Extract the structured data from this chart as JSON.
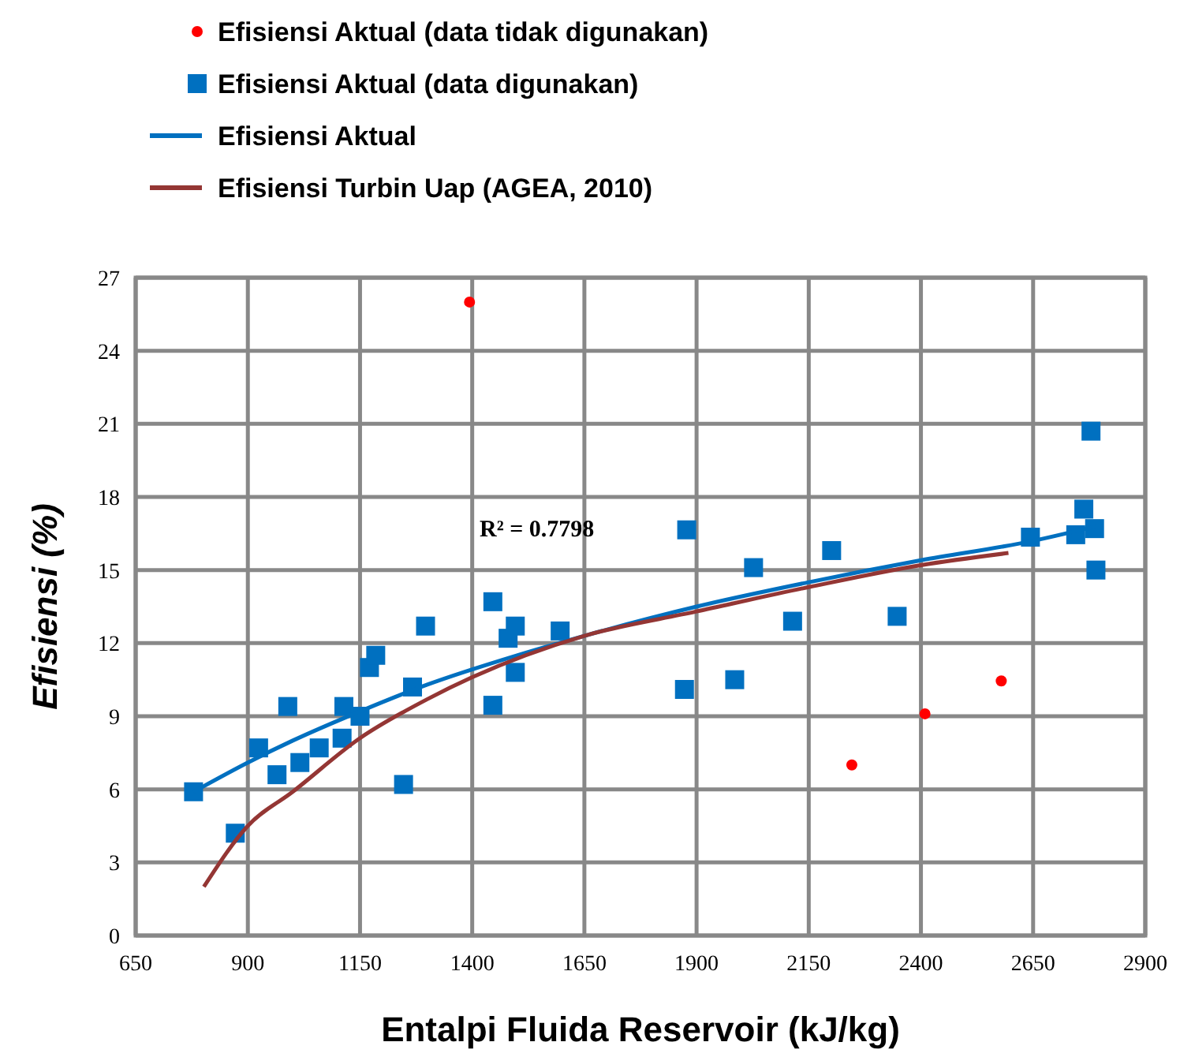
{
  "chart_data": {
    "type": "scatter",
    "xlabel": "Entalpi Fluida Reservoir (kJ/kg)",
    "ylabel": "Efisiensi (%)",
    "xlim": [
      650,
      2900
    ],
    "xticks": [
      650,
      900,
      1150,
      1400,
      1650,
      1900,
      2150,
      2400,
      2650,
      2900
    ],
    "ylim": [
      0,
      27
    ],
    "yticks": [
      0,
      3,
      6,
      9,
      12,
      15,
      18,
      21,
      24,
      27
    ],
    "grid": true,
    "legend": "top",
    "annotations": [
      "R² = 0.7798"
    ],
    "series": [
      {
        "name": "Efisiensi Aktual (data tidak digunakan)",
        "marker": "circle",
        "color": "#ff0000",
        "x": [
          1394,
          2246,
          2409,
          2579
        ],
        "values": [
          26.0,
          7.0,
          9.1,
          10.45
        ]
      },
      {
        "name": "Efisiensi Aktual (data digunakan)",
        "marker": "square",
        "color": "#0070c0",
        "x": [
          779,
          872,
          924,
          965,
          989,
          1016,
          1059,
          1110,
          1114,
          1150,
          1171,
          1185,
          1247,
          1267,
          1296,
          1446,
          1446,
          1480,
          1496,
          1496,
          1596,
          1878,
          1873,
          1985,
          2027,
          2114,
          2201,
          2347,
          2644,
          2745,
          2763,
          2787,
          2779,
          2790
        ],
        "values": [
          5.9,
          4.2,
          7.7,
          6.6,
          9.4,
          7.1,
          7.7,
          8.1,
          9.4,
          9.0,
          11.0,
          11.5,
          6.2,
          10.2,
          12.7,
          13.7,
          9.45,
          12.2,
          12.7,
          10.8,
          12.5,
          16.65,
          10.1,
          10.5,
          15.1,
          12.9,
          15.8,
          13.1,
          16.35,
          16.45,
          17.5,
          16.7,
          20.7,
          15.0
        ]
      },
      {
        "name": "Efisiensi Aktual",
        "type": "line",
        "marker": "none",
        "color": "#0070c0",
        "x": [
          779,
          900,
          1000,
          1150,
          1300,
          1500,
          1650,
          1900,
          2150,
          2400,
          2650,
          2790
        ],
        "values": [
          5.9,
          7.1,
          8.0,
          9.2,
          10.3,
          11.5,
          12.3,
          13.5,
          14.5,
          15.4,
          16.2,
          16.8
        ]
      },
      {
        "name": "Efisiensi Turbin Uap (AGEA, 2010)",
        "type": "line",
        "marker": "none",
        "color": "#943634",
        "x": [
          802,
          900,
          1000,
          1150,
          1300,
          1400,
          1650,
          1900,
          2150,
          2400,
          2595
        ],
        "values": [
          2.0,
          4.5,
          5.9,
          8.1,
          9.7,
          10.6,
          12.3,
          13.3,
          14.3,
          15.2,
          15.7
        ]
      }
    ]
  }
}
